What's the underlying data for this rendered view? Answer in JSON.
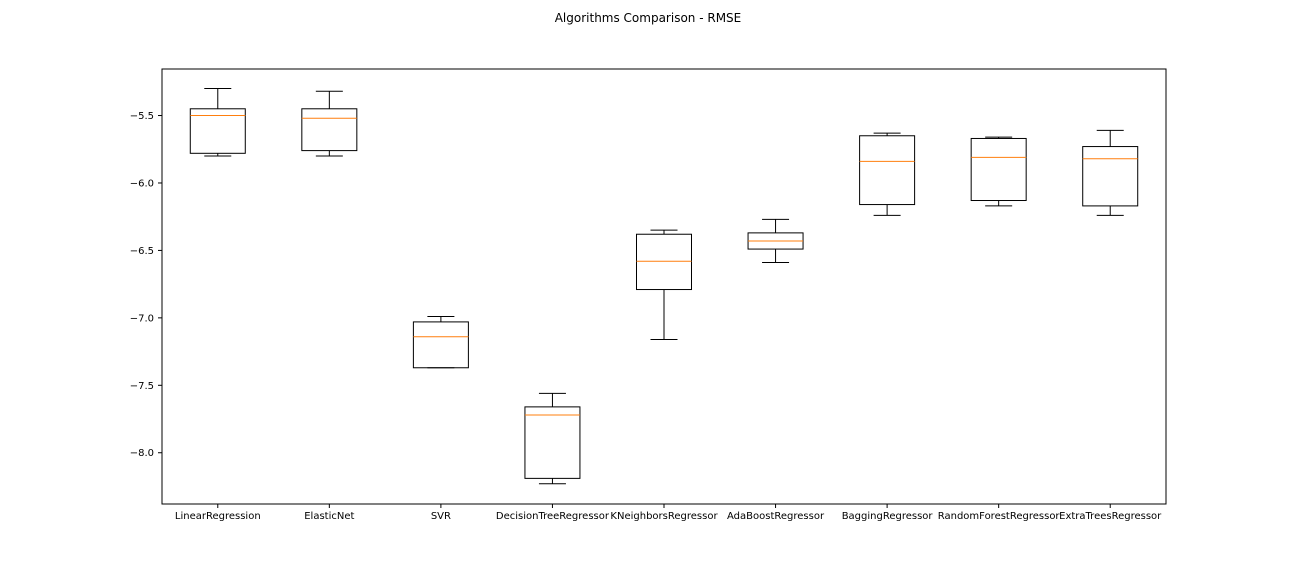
{
  "chart_data": {
    "type": "box",
    "title": "Algorithms Comparison - RMSE",
    "xlabel": "",
    "ylabel": "",
    "ylim": [
      -8.38,
      -5.155
    ],
    "yticks": [
      -8.0,
      -7.5,
      -7.0,
      -6.5,
      -6.0,
      -5.5
    ],
    "ytick_labels": [
      "−8.0",
      "−7.5",
      "−7.0",
      "−6.5",
      "−6.0",
      "−5.5"
    ],
    "grid": false,
    "colors": {
      "box": "#000000",
      "median": "#ff7f0e",
      "whisker": "#000000"
    },
    "categories": [
      "LinearRegression",
      "ElasticNet",
      "SVR",
      "DecisionTreeRegressor",
      "KNeighborsRegressor",
      "AdaBoostRegressor",
      "BaggingRegressor",
      "RandomForestRegressor",
      "ExtraTreesRegressor"
    ],
    "boxes": [
      {
        "whislo": -5.8,
        "q1": -5.78,
        "med": -5.5,
        "q3": -5.45,
        "whishi": -5.3
      },
      {
        "whislo": -5.8,
        "q1": -5.76,
        "med": -5.52,
        "q3": -5.45,
        "whishi": -5.32
      },
      {
        "whislo": -7.37,
        "q1": -7.37,
        "med": -7.14,
        "q3": -7.03,
        "whishi": -6.99
      },
      {
        "whislo": -8.23,
        "q1": -8.19,
        "med": -7.72,
        "q3": -7.66,
        "whishi": -7.56
      },
      {
        "whislo": -7.16,
        "q1": -6.79,
        "med": -6.58,
        "q3": -6.38,
        "whishi": -6.35
      },
      {
        "whislo": -6.59,
        "q1": -6.49,
        "med": -6.43,
        "q3": -6.37,
        "whishi": -6.27
      },
      {
        "whislo": -6.24,
        "q1": -6.16,
        "med": -5.84,
        "q3": -5.65,
        "whishi": -5.63
      },
      {
        "whislo": -6.17,
        "q1": -6.13,
        "med": -5.81,
        "q3": -5.67,
        "whishi": -5.66
      },
      {
        "whislo": -6.24,
        "q1": -6.17,
        "med": -5.82,
        "q3": -5.73,
        "whishi": -5.61
      }
    ]
  }
}
